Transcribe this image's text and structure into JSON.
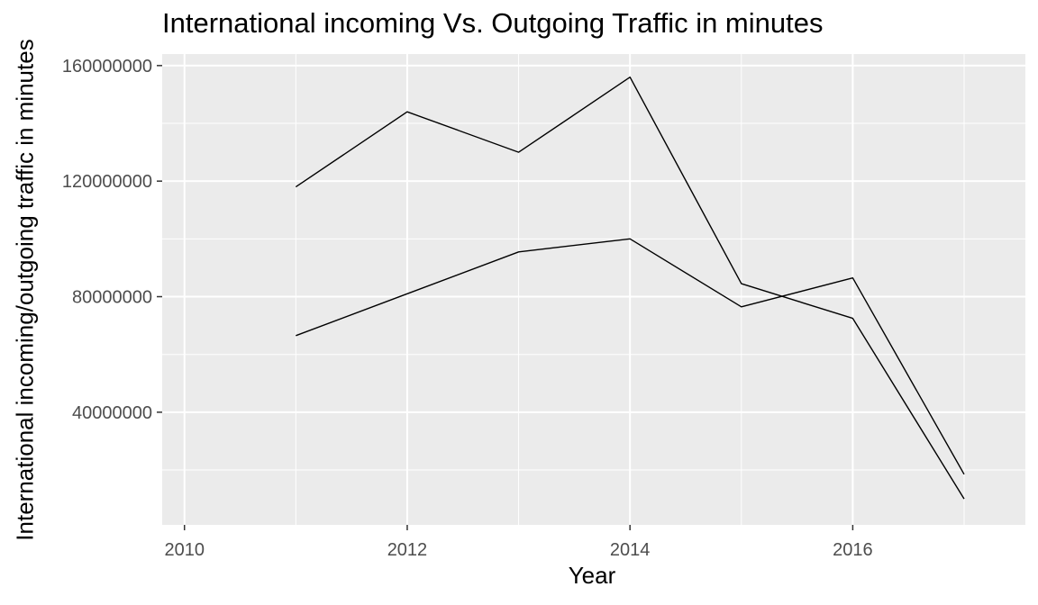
{
  "chart_data": {
    "type": "line",
    "title": "International incoming Vs. Outgoing Traffic in minutes",
    "xlabel": "Year",
    "ylabel": "International incoming/outgoing traffic in minutes",
    "x": [
      2011,
      2012,
      2013,
      2014,
      2015,
      2016,
      2017
    ],
    "series": [
      {
        "values": [
          118000000,
          144000000,
          130000000,
          156000000,
          84500000,
          72500000,
          10000000
        ]
      },
      {
        "values": [
          66500000,
          81000000,
          95500000,
          100000000,
          76500000,
          86500000,
          18500000
        ]
      }
    ],
    "xlim": [
      2009.8,
      2017.55
    ],
    "ylim": [
      1000000,
      164000000
    ],
    "x_ticks": [
      "2010",
      "2012",
      "2014",
      "2016"
    ],
    "y_ticks": [
      "40000000",
      "80000000",
      "120000000",
      "160000000"
    ],
    "grid": true,
    "panel_background": "#EBEBEB",
    "grid_color": "#FFFFFF",
    "line_color": "#000000"
  }
}
